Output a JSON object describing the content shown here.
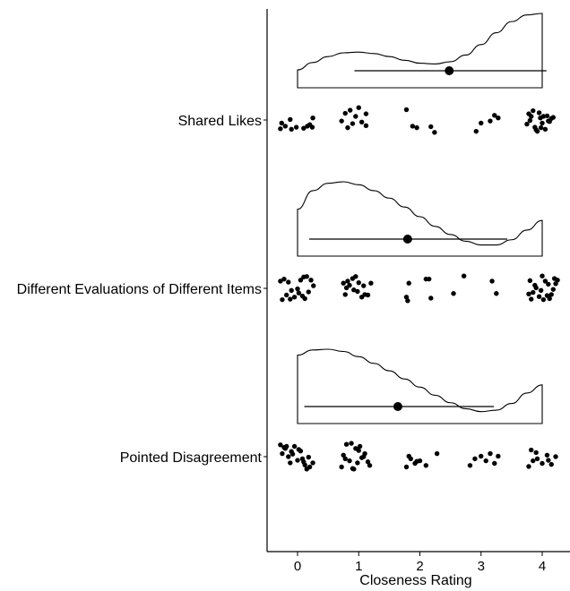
{
  "chart_data": {
    "type": "scatter",
    "subtype": "raincloud",
    "xlabel": "Closeness Rating",
    "xlim": [
      -0.5,
      4.5
    ],
    "x_ticks": [
      0,
      1,
      2,
      3,
      4
    ],
    "x_tick_labels": [
      "0",
      "1",
      "2",
      "3",
      "4"
    ],
    "grid": false,
    "legend": "none",
    "categories": [
      "Shared Likes",
      "Different Evaluations of Different Items",
      "Pointed Disagreement"
    ],
    "summary": [
      {
        "category": "Shared Likes",
        "mean": 2.48,
        "ci": [
          0.93,
          4.07
        ]
      },
      {
        "category": "Different Evaluations of Different Items",
        "mean": 1.8,
        "ci": [
          0.19,
          3.43
        ]
      },
      {
        "category": "Pointed Disagreement",
        "mean": 1.64,
        "ci": [
          0.11,
          3.21
        ]
      }
    ],
    "density": [
      {
        "category": "Shared Likes",
        "x": [
          0,
          0.25,
          0.5,
          0.75,
          1,
          1.25,
          1.5,
          1.75,
          2,
          2.25,
          2.5,
          2.75,
          3,
          3.25,
          3.5,
          3.75,
          4
        ],
        "y": [
          0.24,
          0.34,
          0.42,
          0.47,
          0.48,
          0.46,
          0.42,
          0.37,
          0.33,
          0.32,
          0.35,
          0.44,
          0.58,
          0.74,
          0.89,
          0.98,
          1.0
        ]
      },
      {
        "category": "Different Evaluations of Different Items",
        "x": [
          0,
          0.25,
          0.5,
          0.75,
          1,
          1.25,
          1.5,
          1.75,
          2,
          2.25,
          2.5,
          2.75,
          3,
          3.25,
          3.5,
          3.75,
          4
        ],
        "y": [
          0.63,
          0.88,
          0.98,
          1.0,
          0.96,
          0.88,
          0.78,
          0.66,
          0.53,
          0.4,
          0.29,
          0.2,
          0.15,
          0.15,
          0.22,
          0.35,
          0.48
        ]
      },
      {
        "category": "Pointed Disagreement",
        "x": [
          0,
          0.25,
          0.5,
          0.75,
          1,
          1.25,
          1.5,
          1.75,
          2,
          2.25,
          2.5,
          2.75,
          3,
          3.25,
          3.5,
          3.75,
          4
        ],
        "y": [
          0.92,
          0.99,
          1.0,
          0.97,
          0.9,
          0.81,
          0.71,
          0.6,
          0.49,
          0.38,
          0.28,
          0.2,
          0.16,
          0.18,
          0.27,
          0.41,
          0.52
        ]
      }
    ],
    "series": [
      {
        "category": "Shared Likes",
        "x": [
          -0.28,
          -0.2,
          -0.1,
          -0.02,
          0.1,
          0.2,
          0.24,
          -0.26,
          -0.12,
          0.16,
          0.25,
          0.72,
          0.82,
          0.9,
          0.95,
          1.05,
          1.12,
          0.78,
          0.86,
          1.0,
          1.12,
          1.78,
          1.88,
          1.95,
          2.18,
          2.24,
          2.92,
          3.0,
          3.15,
          3.22,
          3.28,
          3.75,
          3.8,
          3.82,
          3.88,
          3.92,
          3.97,
          4.0,
          4.05,
          4.1,
          4.15,
          3.78,
          3.85,
          3.95,
          4.08,
          4.12,
          3.9,
          4.02,
          4.18,
          3.98
        ],
        "y": [
          3.1,
          2.85,
          3.15,
          2.95,
          3.05,
          2.7,
          2.95,
          2.55,
          2.2,
          2.85,
          2.05,
          2.35,
          3.0,
          2.6,
          1.9,
          2.45,
          2.8,
          1.6,
          1.3,
          1.05,
          1.65,
          1.25,
          2.85,
          3.0,
          2.9,
          3.45,
          3.35,
          2.55,
          2.35,
          1.8,
          2.05,
          2.65,
          2.3,
          1.9,
          2.95,
          3.35,
          2.05,
          2.55,
          3.15,
          2.35,
          2.1,
          1.65,
          1.35,
          1.55,
          1.85,
          2.4,
          3.2,
          1.9,
          2.0,
          3.0
        ]
      },
      {
        "category": "Different Evaluations of Different Items",
        "x": [
          -0.25,
          -0.18,
          -0.12,
          -0.05,
          0.02,
          0.08,
          0.12,
          -0.28,
          -0.22,
          -0.15,
          0.05,
          0.1,
          0.15,
          -0.1,
          0.0,
          0.18,
          0.26,
          0.22,
          0.78,
          0.85,
          0.92,
          0.98,
          1.05,
          1.1,
          0.75,
          0.82,
          0.9,
          0.95,
          1.0,
          1.08,
          1.15,
          0.8,
          1.2,
          1.78,
          1.82,
          2.18,
          1.8,
          2.1,
          2.15,
          2.55,
          2.72,
          3.18,
          3.25,
          3.78,
          3.82,
          3.9,
          3.95,
          4.02,
          4.08,
          4.12,
          4.18,
          4.22,
          3.8,
          3.88,
          3.98,
          4.05,
          4.15,
          4.2,
          4.25,
          3.85,
          4.1,
          4.0
        ],
        "y": [
          3.35,
          2.9,
          3.3,
          3.1,
          2.7,
          3.0,
          3.25,
          1.55,
          1.35,
          1.65,
          1.45,
          1.15,
          1.1,
          2.45,
          2.3,
          2.6,
          2.0,
          1.45,
          2.85,
          1.95,
          2.4,
          2.55,
          3.1,
          2.85,
          1.75,
          1.55,
          1.3,
          1.1,
          1.7,
          2.0,
          2.9,
          2.2,
          1.75,
          3.1,
          1.75,
          3.2,
          3.45,
          1.35,
          1.35,
          2.75,
          1.05,
          1.55,
          2.75,
          2.8,
          3.3,
          2.2,
          3.05,
          3.35,
          2.95,
          3.25,
          2.35,
          1.8,
          1.5,
          1.95,
          2.45,
          1.55,
          2.85,
          1.3,
          1.45,
          2.65,
          1.85,
          1.05
        ]
      },
      {
        "category": "Pointed Disagreement",
        "x": [
          -0.28,
          -0.2,
          -0.15,
          -0.08,
          0.0,
          0.05,
          0.12,
          0.18,
          -0.22,
          -0.12,
          -0.05,
          0.02,
          0.08,
          0.15,
          -0.25,
          -0.18,
          -0.1,
          0.1,
          0.2,
          0.25,
          0.72,
          0.78,
          0.85,
          0.92,
          0.98,
          1.05,
          1.1,
          1.18,
          0.8,
          0.88,
          0.95,
          1.02,
          1.08,
          0.75,
          0.9,
          1.0,
          1.15,
          1.78,
          1.85,
          1.92,
          2.0,
          2.1,
          2.28,
          1.82,
          1.95,
          2.82,
          2.9,
          3.0,
          3.08,
          3.15,
          3.22,
          3.28,
          3.78,
          3.85,
          3.92,
          4.0,
          4.08,
          4.15,
          4.22,
          3.82,
          3.9,
          4.1
        ],
        "y": [
          1.1,
          1.45,
          2.25,
          2.0,
          2.6,
          1.7,
          3.05,
          2.3,
          1.35,
          2.85,
          1.25,
          1.55,
          2.45,
          3.45,
          1.95,
          1.25,
          1.75,
          2.75,
          3.25,
          2.85,
          3.25,
          2.45,
          2.65,
          3.45,
          2.85,
          2.35,
          1.95,
          3.1,
          1.05,
          0.95,
          1.45,
          1.25,
          2.25,
          2.1,
          3.4,
          1.65,
          2.75,
          3.25,
          2.45,
          2.9,
          2.65,
          3.1,
          1.95,
          2.2,
          2.7,
          3.1,
          2.45,
          2.2,
          2.65,
          1.95,
          2.9,
          2.2,
          3.2,
          2.65,
          2.45,
          2.9,
          2.1,
          3.0,
          2.25,
          1.6,
          1.85,
          2.6
        ]
      }
    ]
  }
}
